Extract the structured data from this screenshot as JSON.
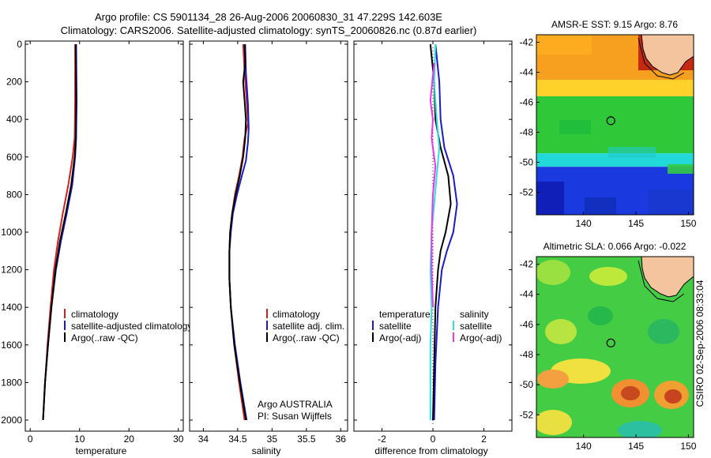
{
  "header": {
    "line1": "Argo profile: CS 5901134_28 26-Aug-2006 20060830_31 47.229S 142.603E",
    "line2": "Climatology: CARS2006. Satellite-adjusted climatology: synTS_20060826.nc (0.87d earlier)"
  },
  "colors": {
    "climatology": "#d42020",
    "satellite": "#1a1acc",
    "argo": "#000000",
    "salinity_satellite": "#33dddd",
    "salinity_argo": "#ee33ee"
  },
  "chart_data": [
    {
      "type": "line",
      "id": "temperature",
      "xlabel": "temperature",
      "xlim": [
        -1,
        31
      ],
      "ylim": [
        2050,
        0
      ],
      "xticks": [
        0,
        10,
        20,
        30
      ],
      "yticks": [
        0,
        200,
        400,
        600,
        800,
        1000,
        1200,
        1400,
        1600,
        1800,
        2000
      ],
      "legend": {
        "entries": [
          "climatology",
          "satellite-adjusted climatology",
          "Argo(..raw -QC)"
        ]
      },
      "series": [
        {
          "name": "climatology",
          "color": "climatology",
          "points": [
            [
              9.1,
              0
            ],
            [
              9.1,
              300
            ],
            [
              9.0,
              500
            ],
            [
              8.6,
              600
            ],
            [
              7.7,
              750
            ],
            [
              6.6,
              900
            ],
            [
              5.6,
              1050
            ],
            [
              4.8,
              1200
            ],
            [
              4.1,
              1400
            ],
            [
              3.5,
              1600
            ],
            [
              3.0,
              1800
            ],
            [
              2.6,
              2000
            ]
          ]
        },
        {
          "name": "satellite-adjusted climatology",
          "color": "satellite",
          "points": [
            [
              9.3,
              0
            ],
            [
              9.4,
              300
            ],
            [
              9.3,
              500
            ],
            [
              9.1,
              600
            ],
            [
              8.5,
              750
            ],
            [
              7.4,
              900
            ],
            [
              6.2,
              1050
            ],
            [
              5.2,
              1200
            ],
            [
              4.3,
              1400
            ],
            [
              3.6,
              1600
            ],
            [
              3.0,
              1800
            ],
            [
              2.6,
              2000
            ]
          ]
        },
        {
          "name": "Argo(..raw -QC)",
          "color": "argo",
          "points": [
            [
              9.2,
              0
            ],
            [
              9.3,
              300
            ],
            [
              9.2,
              500
            ],
            [
              9.0,
              600
            ],
            [
              8.3,
              750
            ],
            [
              7.2,
              900
            ],
            [
              6.0,
              1050
            ],
            [
              5.1,
              1200
            ],
            [
              4.3,
              1400
            ],
            [
              3.6,
              1600
            ],
            [
              3.0,
              1800
            ],
            [
              2.6,
              2000
            ]
          ]
        }
      ]
    },
    {
      "type": "line",
      "id": "salinity",
      "xlabel": "salinity",
      "xlim": [
        33.8,
        36.1
      ],
      "ylim": [
        2050,
        0
      ],
      "xticks": [
        34,
        34.5,
        35,
        35.5,
        36
      ],
      "xticklabels": [
        "34",
        "34.5",
        "35",
        "35.5",
        "36"
      ],
      "legend": {
        "entries": [
          "climatology",
          "satellite adj. clim.",
          "Argo(..raw -QC)"
        ]
      },
      "annotation": [
        "Argo AUSTRALIA",
        "PI: Susan Wijffels"
      ],
      "series": [
        {
          "name": "climatology",
          "color": "climatology",
          "points": [
            [
              34.58,
              0
            ],
            [
              34.6,
              150
            ],
            [
              34.63,
              300
            ],
            [
              34.65,
              420
            ],
            [
              34.6,
              500
            ],
            [
              34.57,
              600
            ],
            [
              34.52,
              700
            ],
            [
              34.46,
              800
            ],
            [
              34.42,
              900
            ],
            [
              34.39,
              1000
            ],
            [
              34.38,
              1100
            ],
            [
              34.38,
              1250
            ],
            [
              34.4,
              1400
            ],
            [
              34.45,
              1600
            ],
            [
              34.52,
              1800
            ],
            [
              34.6,
              2000
            ]
          ]
        },
        {
          "name": "satellite adj. clim.",
          "color": "satellite",
          "points": [
            [
              34.61,
              0
            ],
            [
              34.62,
              150
            ],
            [
              34.65,
              320
            ],
            [
              34.66,
              450
            ],
            [
              34.65,
              520
            ],
            [
              34.62,
              620
            ],
            [
              34.56,
              700
            ],
            [
              34.49,
              800
            ],
            [
              34.43,
              900
            ],
            [
              34.4,
              1000
            ],
            [
              34.38,
              1100
            ],
            [
              34.38,
              1250
            ],
            [
              34.4,
              1400
            ],
            [
              34.46,
              1600
            ],
            [
              34.54,
              1800
            ],
            [
              34.63,
              2000
            ]
          ]
        },
        {
          "name": "Argo(..raw -QC)",
          "color": "argo",
          "points": [
            [
              34.6,
              0
            ],
            [
              34.61,
              100
            ],
            [
              34.58,
              200
            ],
            [
              34.6,
              300
            ],
            [
              34.62,
              400
            ],
            [
              34.61,
              500
            ],
            [
              34.58,
              600
            ],
            [
              34.53,
              700
            ],
            [
              34.47,
              800
            ],
            [
              34.42,
              900
            ],
            [
              34.39,
              1000
            ],
            [
              34.38,
              1100
            ],
            [
              34.38,
              1250
            ],
            [
              34.4,
              1400
            ],
            [
              34.45,
              1600
            ],
            [
              34.53,
              1800
            ],
            [
              34.62,
              2000
            ]
          ]
        }
      ]
    },
    {
      "type": "line",
      "id": "difference",
      "xlabel": "difference from climatology",
      "xlim": [
        -3.1,
        3.1
      ],
      "ylim": [
        2050,
        0
      ],
      "xticks": [
        -2,
        0,
        2
      ],
      "legend": {
        "left_title": "temperature",
        "left_entries": [
          "satellite",
          "Argo(-adj)"
        ],
        "right_title": "salinity",
        "right_entries": [
          "satellite",
          "Argo(-adj)"
        ]
      },
      "series": [
        {
          "name": "temperature satellite",
          "color": "satellite",
          "points": [
            [
              0.1,
              0
            ],
            [
              0.25,
              200
            ],
            [
              0.3,
              400
            ],
            [
              0.45,
              550
            ],
            [
              0.8,
              700
            ],
            [
              0.95,
              850
            ],
            [
              0.8,
              1000
            ],
            [
              0.55,
              1100
            ],
            [
              0.35,
              1200
            ],
            [
              0.2,
              1400
            ],
            [
              0.1,
              1700
            ],
            [
              0.05,
              2000
            ]
          ]
        },
        {
          "name": "temperature Argo(-adj)",
          "color": "argo",
          "points": [
            [
              -0.1,
              0
            ],
            [
              0.05,
              200
            ],
            [
              0.1,
              400
            ],
            [
              0.3,
              550
            ],
            [
              0.6,
              700
            ],
            [
              0.7,
              850
            ],
            [
              0.5,
              1000
            ],
            [
              0.3,
              1100
            ],
            [
              0.2,
              1200
            ],
            [
              0.1,
              1400
            ],
            [
              0.05,
              1700
            ],
            [
              0.0,
              2000
            ]
          ]
        },
        {
          "name": "salinity satellite",
          "color": "salinity_satellite",
          "points": [
            [
              0.1,
              0
            ],
            [
              0.05,
              200
            ],
            [
              0.15,
              400
            ],
            [
              0.25,
              550
            ],
            [
              0.15,
              700
            ],
            [
              0.05,
              850
            ],
            [
              -0.05,
              1000
            ],
            [
              -0.1,
              1200
            ],
            [
              -0.05,
              1400
            ],
            [
              -0.1,
              1600
            ],
            [
              -0.1,
              2000
            ]
          ]
        },
        {
          "name": "salinity Argo(-adj)",
          "color": "salinity_argo",
          "points": [
            [
              0.05,
              100
            ],
            [
              -0.1,
              300
            ],
            [
              0.0,
              400
            ],
            [
              -0.05,
              500
            ],
            [
              0.1,
              650
            ],
            [
              0.0,
              800
            ],
            [
              -0.05,
              1000
            ],
            [
              -0.05,
              1200
            ],
            [
              0.0,
              1400
            ]
          ]
        }
      ]
    },
    {
      "type": "heatmap",
      "id": "amsr-sst",
      "title": "AMSR-E SST: 9.15 Argo: 8.76",
      "xlim": [
        135.5,
        150.5
      ],
      "ylim": [
        -53.5,
        -41.5
      ],
      "xticks": [
        140,
        145,
        150
      ],
      "yticks": [
        -42,
        -44,
        -46,
        -48,
        -50,
        -52
      ],
      "marker": {
        "lon": 142.603,
        "lat": -47.229
      },
      "bands": [
        {
          "lat_top": -41.5,
          "lat_bottom": -44.5,
          "color": "#f7a020"
        },
        {
          "lat_top": -44.5,
          "lat_bottom": -45.6,
          "color": "#ffd12a"
        },
        {
          "lat_top": -45.6,
          "lat_bottom": -49.4,
          "color": "#2ec838"
        },
        {
          "lat_top": -49.4,
          "lat_bottom": -50.3,
          "color": "#22d8d8"
        },
        {
          "lat_top": -50.3,
          "lat_bottom": -53.5,
          "color": "#1a3ae0"
        }
      ]
    },
    {
      "type": "heatmap",
      "id": "altimetric-sla",
      "title": "Altimetric SLA: 0.066 Argo: -0.022",
      "xlim": [
        135.5,
        150.5
      ],
      "ylim": [
        -53.5,
        -41.5
      ],
      "xticks": [
        140,
        145,
        150
      ],
      "yticks": [
        -42,
        -44,
        -46,
        -48,
        -50,
        -52
      ],
      "marker": {
        "lon": 142.603,
        "lat": -47.229
      },
      "background_color": "#44cc44"
    }
  ],
  "footer": {
    "credit": "CSIRO 02-Sep-2006 08:33:04"
  }
}
